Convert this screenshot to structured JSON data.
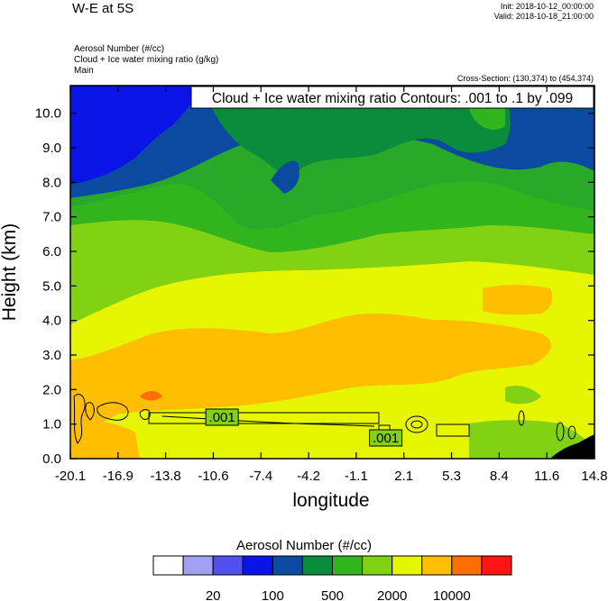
{
  "header": {
    "title": "W-E at 5S",
    "init": "Init: 2018-10-12_00:00:00",
    "valid": "Valid: 2018-10-18_21:00:00",
    "field_label_1": "Aerosol Number   (#/cc)",
    "field_label_2": "Cloud + Ice water mixing ratio   (g/kg)",
    "field_label_3": "Main",
    "cross_section": "Cross-Section: (130,374) to (454,374)"
  },
  "chart_data": {
    "type": "heatmap",
    "title": "Cloud + Ice water mixing ratio Contours: .001 to .1 by .099",
    "xlabel": "longitude",
    "ylabel": "Height (km)",
    "xlim": [
      -20.1,
      14.8
    ],
    "ylim": [
      0,
      10.8
    ],
    "x_ticks": [
      "-20.1",
      "-16.9",
      "-13.8",
      "-10.6",
      "-7.4",
      "-4.2",
      "-1.1",
      "2.1",
      "5.3",
      "8.4",
      "11.6",
      "14.8"
    ],
    "y_ticks": [
      "0.0",
      "1.0",
      "2.0",
      "3.0",
      "4.0",
      "5.0",
      "6.0",
      "7.0",
      "8.0",
      "9.0",
      "10.0"
    ],
    "y_tick_values": [
      0,
      1,
      2,
      3,
      4,
      5,
      6,
      7,
      8,
      9,
      10
    ],
    "contour_labels": [
      {
        "text": ".001",
        "x": -10.0,
        "y": 1.2
      },
      {
        "text": ".001",
        "x": 0.9,
        "y": 0.6
      }
    ],
    "colorbar": {
      "title": "Aerosol Number  (#/cc)",
      "colors": [
        "#ffffff",
        "#a0a0f5",
        "#5050ee",
        "#0a14e6",
        "#0a4aa0",
        "#0a8c3c",
        "#32b41e",
        "#82d214",
        "#e6f500",
        "#ffbe00",
        "#ff6e00",
        "#ff1414"
      ],
      "labels": [
        "20",
        "100",
        "500",
        "2000",
        "10000"
      ]
    }
  }
}
